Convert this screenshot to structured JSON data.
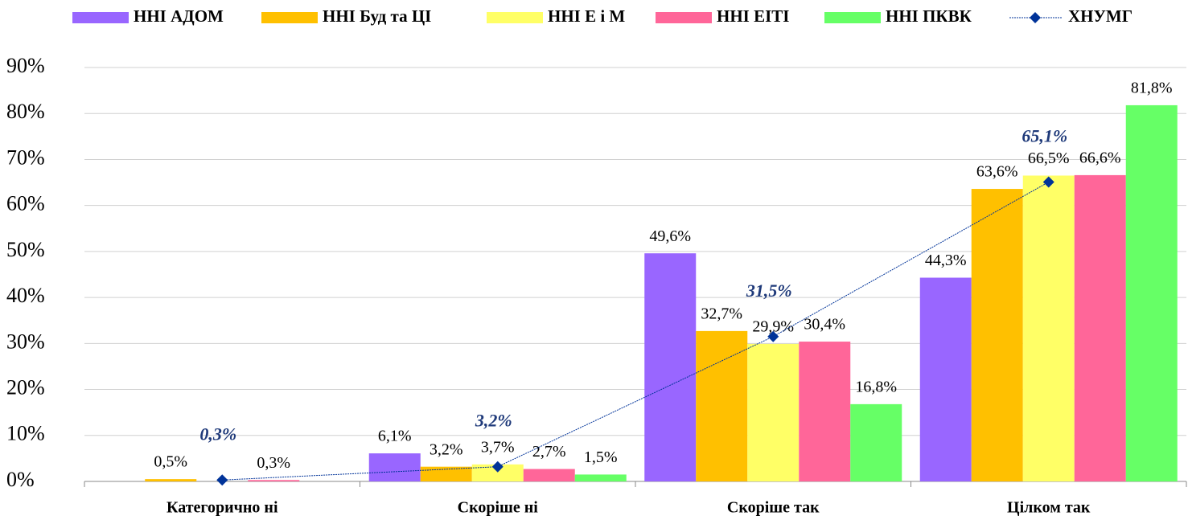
{
  "chart_data": {
    "type": "bar",
    "categories": [
      "Категорично ні",
      "Скоріше ні",
      "Скоріше так",
      "Цілком так"
    ],
    "series": [
      {
        "name": "ННІ АДОМ",
        "color": "#9966ff",
        "values": [
          null,
          6.1,
          49.6,
          44.3
        ],
        "value_labels": [
          null,
          "6,1%",
          "49,6%",
          "44,3%"
        ]
      },
      {
        "name": "ННІ Буд та ЦІ",
        "color": "#ffc000",
        "values": [
          0.5,
          3.2,
          32.7,
          63.6
        ],
        "value_labels": [
          "0,5%",
          "3,2%",
          "32,7%",
          "63,6%"
        ]
      },
      {
        "name": "ННІ Е і М",
        "color": "#ffff66",
        "values": [
          null,
          3.7,
          29.9,
          66.5
        ],
        "value_labels": [
          null,
          "3,7%",
          "29,9%",
          "66,5%"
        ]
      },
      {
        "name": "ННІ ЕІТІ",
        "color": "#ff6699",
        "values": [
          0.3,
          2.7,
          30.4,
          66.6
        ],
        "value_labels": [
          "0,3%",
          "2,7%",
          "30,4%",
          "66,6%"
        ]
      },
      {
        "name": "ННІ ПКВК",
        "color": "#66ff66",
        "values": [
          null,
          1.5,
          16.8,
          81.8
        ],
        "value_labels": [
          null,
          "1,5%",
          "16,8%",
          "81,8%"
        ]
      },
      {
        "name": "ХНУМГ",
        "type": "line",
        "color": "#003399",
        "values": [
          0.3,
          3.2,
          31.5,
          65.1
        ],
        "value_labels": [
          "0,3%",
          "3,2%",
          "31,5%",
          "65,1%"
        ]
      }
    ],
    "ylim": [
      0,
      90
    ],
    "yticks": [
      {
        "value": 0,
        "label": "0%"
      },
      {
        "value": 10,
        "label": "10%"
      },
      {
        "value": 20,
        "label": "20%"
      },
      {
        "value": 30,
        "label": "30%"
      },
      {
        "value": 40,
        "label": "40%"
      },
      {
        "value": 50,
        "label": "50%"
      },
      {
        "value": 60,
        "label": "60%"
      },
      {
        "value": 70,
        "label": "70%"
      },
      {
        "value": 80,
        "label": "80%"
      },
      {
        "value": 90,
        "label": "90%"
      }
    ],
    "grid": true,
    "legend": "top"
  }
}
